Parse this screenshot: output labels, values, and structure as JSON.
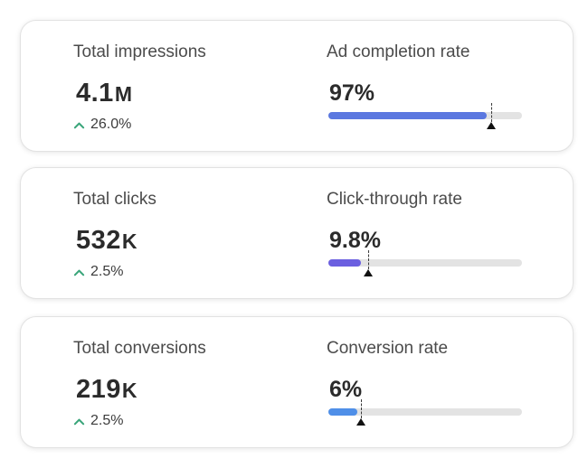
{
  "cards": [
    {
      "metric": {
        "label": "Total impressions",
        "value": "4.1",
        "suffix": "M",
        "delta": "26.0%"
      },
      "rate": {
        "label": "Ad completion rate",
        "value": "97%",
        "progress": 0.82,
        "target": 0.84,
        "color": "#5b78e0"
      }
    },
    {
      "metric": {
        "label": "Total clicks",
        "value": "532",
        "suffix": "K",
        "delta": "2.5%"
      },
      "rate": {
        "label": "Click-through rate",
        "value": "9.8%",
        "progress": 0.17,
        "target": 0.205,
        "color": "#6b5fe0"
      }
    },
    {
      "metric": {
        "label": "Total conversions",
        "value": "219",
        "suffix": "K",
        "delta": "2.5%"
      },
      "rate": {
        "label": "Conversion rate",
        "value": "6%",
        "progress": 0.15,
        "target": 0.17,
        "color": "#4f8fe8"
      }
    }
  ],
  "colors": {
    "up_arrow": "#3aa57a"
  },
  "icons": {
    "delta": "chevron-up-icon",
    "target": "triangle-marker-icon"
  }
}
